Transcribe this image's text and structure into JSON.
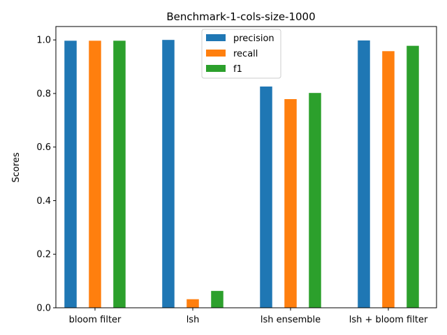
{
  "chart_data": {
    "type": "bar",
    "title": "Benchmark-1-cols-size-1000",
    "xlabel": "",
    "ylabel": "Scores",
    "categories": [
      "bloom filter",
      "lsh",
      "lsh ensemble",
      "lsh + bloom filter"
    ],
    "series": [
      {
        "name": "precision",
        "color": "#1f77b4",
        "values": [
          0.997,
          1.0,
          0.826,
          0.998
        ]
      },
      {
        "name": "recall",
        "color": "#ff7f0e",
        "values": [
          0.997,
          0.032,
          0.779,
          0.958
        ]
      },
      {
        "name": "f1",
        "color": "#2ca02c",
        "values": [
          0.997,
          0.063,
          0.802,
          0.978
        ]
      }
    ],
    "ylim": [
      0,
      1.05
    ],
    "yticks": [
      "0.0",
      "0.2",
      "0.4",
      "0.6",
      "0.8",
      "1.0"
    ],
    "legend_position": "top-center",
    "grid": false
  }
}
